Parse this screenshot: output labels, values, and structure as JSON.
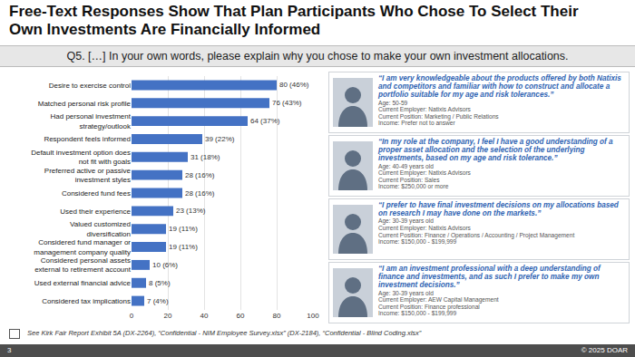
{
  "title": "Free-Text Responses Show That Plan Participants Who Chose To Select Their Own Investments Are Financially Informed",
  "question": "Q5. […] In your own words, please explain why you chose to make your own investment allocations.",
  "chart_data": {
    "type": "bar",
    "orientation": "horizontal",
    "categories": [
      "Desire to exercise control",
      "Matched personal risk profile",
      "Had personal investment strategy/outlook",
      "Respondent feels informed",
      "Default investment option does not fit with goals",
      "Preferred active or passive investment styles",
      "Considered fund fees",
      "Used their experience",
      "Valued customized diversification",
      "Considered fund manager or management company quality",
      "Considered personal assets external to retirement account",
      "Used external financial advice",
      "Considered tax implications"
    ],
    "values": [
      80,
      76,
      64,
      39,
      31,
      28,
      28,
      23,
      19,
      19,
      10,
      8,
      7
    ],
    "value_labels": [
      "80 (46%)",
      "76 (43%)",
      "64 (37%)",
      "39 (22%)",
      "31 (18%)",
      "28 (16%)",
      "28 (16%)",
      "23 (13%)",
      "19 (11%)",
      "19 (11%)",
      "10 (6%)",
      "8 (5%)",
      "7 (4%)"
    ],
    "color": "#4472c4",
    "xlim": [
      0,
      100
    ],
    "xticks": [
      0,
      20,
      40,
      60,
      80,
      100
    ],
    "grid": true,
    "data_labels": true
  },
  "quotes": [
    {
      "quote": "“I am very knowledgeable about the products offered by both Natixis and competitors and familiar with how to construct and allocate a portfolio suitable for my age and risk tolerances.”",
      "details": [
        "Age: 50-59",
        "Current Employer: Natixis Advisors",
        "Current Position: Marketing / Public Relations",
        "Income: Prefer not to answer"
      ]
    },
    {
      "quote": "“In my role at the company, I feel I have a good understanding of a proper asset allocation and the selection of the underlying investments, based on my age and risk tolerance.”",
      "details": [
        "Age: 40-49 years old",
        "Current Employer: Natixis Advisors",
        "Current Position: Sales",
        "Income: $250,000 or more"
      ]
    },
    {
      "quote": "“I prefer to have final investment decisions on my allocations based on research I may have done on the markets.”",
      "details": [
        "Age: 30-39 years old",
        "Current Employer: Natixis Advisors",
        "Current Position: Finance / Operations / Accounting / Project Management",
        "Income: $150,000 - $199,999"
      ]
    },
    {
      "quote": "“I am an investment professional with a deep understanding of finance and investments, and as such I prefer to make my own investment decisions.”",
      "details": [
        "Age: 30-39 years old",
        "Current Employer: AEW Capital Management",
        "Current Position: Finance professional",
        "Income: $150,000 - $199,999"
      ]
    }
  ],
  "footnote": "See Kirk Fair Report Exhibit 5A (DX-2264), “Confidential - NIM Employee Survey.xlsx” (DX-2184), “Confidential - Blind Coding.xlsx”",
  "page": "3",
  "copyright": "© 2025 DOAR"
}
